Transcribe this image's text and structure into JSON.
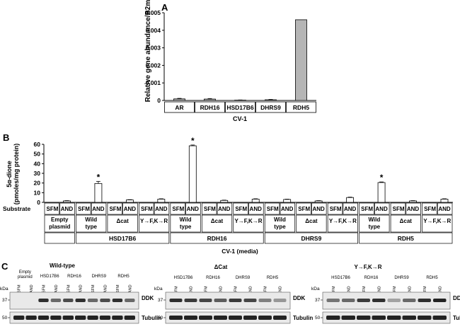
{
  "panel_a": {
    "letter": "A",
    "ylabel": "Relative gene abundance/B2m",
    "cell_line": "CV-1",
    "colors": {
      "bar_fill": "#b5b5b5",
      "bar_stroke": "#000000"
    }
  },
  "panel_b": {
    "letter": "B",
    "ylabel_line1": "5α-dione",
    "ylabel_line2": "(pmoles/mg protein)",
    "substrate_label": "Substrate",
    "sfm": "SFM",
    "and": "AND",
    "significance": "*",
    "group_labels": [
      [
        "Empty",
        "plasmid"
      ],
      [
        "Wild",
        "type"
      ],
      [
        "Δcat"
      ],
      [
        "Y→F,K→R"
      ],
      [
        "Wild",
        "type"
      ],
      [
        "Δcat"
      ],
      [
        "Y→F,K→R"
      ],
      [
        "Wild",
        "type"
      ],
      [
        "Δcat"
      ],
      [
        "Y→F,K→R"
      ],
      [
        "Wild",
        "type"
      ],
      [
        "Δcat"
      ],
      [
        "Y→F,K→R"
      ]
    ],
    "enzyme_labels": [
      "HSD17B6",
      "RDH16",
      "DHRS9",
      "RDH5"
    ],
    "media_label": "CV-1 (media)"
  },
  "panel_c": {
    "letter": "C",
    "kda": "kDa",
    "mw_37": "37",
    "mw_50": "50",
    "ddk": "DDK",
    "tubulin": "Tubulin",
    "sfm": "SFM",
    "and": "AND",
    "blots": [
      {
        "title": "Wild-type",
        "empty_label": [
          "Empty",
          "plasmid"
        ],
        "enzymes": [
          "HSD17B6",
          "RDH16",
          "DHRS9",
          "RDH5"
        ]
      },
      {
        "title": "ΔCat",
        "enzymes": [
          "HSD17B6",
          "RDH16",
          "DHRS9",
          "RDH5"
        ]
      },
      {
        "title": "Y→F,K→R",
        "enzymes": [
          "HSD17B6",
          "RDH16",
          "DHRS9",
          "RDH5"
        ]
      }
    ]
  },
  "chart_data": [
    {
      "type": "bar",
      "ylabel": "Relative gene abundance/B2m",
      "xlabel": "CV-1",
      "categories": [
        "AR",
        "RDH16",
        "HSD17B6",
        "DHRS9",
        "RDH5"
      ],
      "values": [
        9e-05,
        8e-05,
        2e-05,
        4e-05,
        0.0046
      ],
      "errors": [
        3e-05,
        3e-05,
        1e-05,
        2e-05,
        0.0
      ],
      "yticks": [
        "0",
        "0.001",
        "0.002",
        "0.003",
        "0.004",
        "0.005"
      ],
      "ylim": [
        0,
        0.005
      ],
      "grid": false
    },
    {
      "type": "bar",
      "ylabel": "5α-dione (pmoles/mg protein)",
      "xlabel": "CV-1 (media)",
      "categories": [
        "Empty plasmid SFM",
        "Empty plasmid AND",
        "HSD17B6 Wild type SFM",
        "HSD17B6 Wild type AND",
        "HSD17B6 Δcat SFM",
        "HSD17B6 Δcat AND",
        "HSD17B6 Y→F,K→R SFM",
        "HSD17B6 Y→F,K→R AND",
        "RDH16 Wild type SFM",
        "RDH16 Wild type AND",
        "RDH16 Δcat SFM",
        "RDH16 Δcat AND",
        "RDH16 Y→F,K→R SFM",
        "RDH16 Y→F,K→R AND",
        "DHRS9 Wild type SFM",
        "DHRS9 Wild type AND",
        "DHRS9 Δcat SFM",
        "DHRS9 Δcat AND",
        "DHRS9 Y→F,K→R SFM",
        "DHRS9 Y→F,K→R AND",
        "RDH5 Wild type SFM",
        "RDH5 Wild type AND",
        "RDH5 Δcat SFM",
        "RDH5 Δcat AND",
        "RDH5 Y→F,K→R SFM",
        "RDH5 Y→F,K→R AND"
      ],
      "values": [
        0,
        1.5,
        0,
        19.5,
        0,
        2.5,
        0,
        3.3,
        0,
        58.5,
        0,
        2.0,
        0,
        3.3,
        0,
        3.0,
        0,
        1.5,
        0,
        5.0,
        0,
        20.5,
        0,
        1.5,
        0,
        3.3
      ],
      "errors": [
        0,
        0.3,
        0,
        2.2,
        0,
        0.3,
        0,
        0.4,
        0,
        0.8,
        0,
        0.3,
        0,
        0.4,
        0,
        0.3,
        0,
        0.3,
        0,
        0.4,
        0,
        0.6,
        0,
        0.3,
        0,
        0.4
      ],
      "significant": [
        false,
        false,
        false,
        true,
        false,
        false,
        false,
        false,
        false,
        true,
        false,
        false,
        false,
        false,
        false,
        false,
        false,
        false,
        false,
        false,
        false,
        true,
        false,
        false,
        false,
        false
      ],
      "yticks": [
        "0",
        "10",
        "20",
        "30",
        "40",
        "50",
        "60"
      ],
      "ylim": [
        0,
        60
      ],
      "grid": false
    }
  ]
}
